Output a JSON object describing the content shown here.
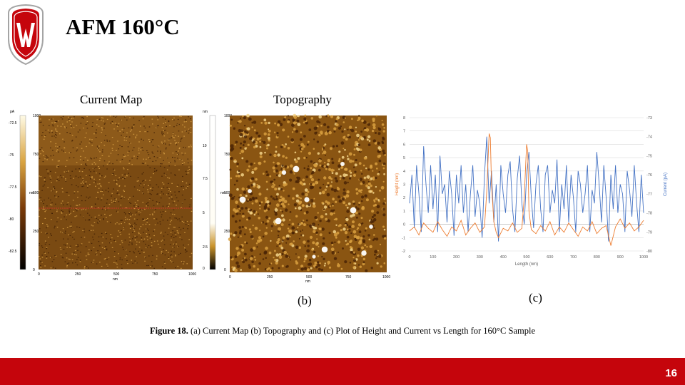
{
  "slide": {
    "title": "AFM 160°C",
    "page_number": "16",
    "footer_color": "#c5050c"
  },
  "panels": {
    "current_map_label": "Current Map",
    "topography_label": "Topography",
    "label_b": "(b)",
    "label_c": "(c)"
  },
  "current_map": {
    "unit": "pA",
    "colorbar_ticks": [
      "-72.5",
      "-75",
      "-77.5",
      "-80",
      "-82.5"
    ],
    "y_ticks": [
      "1000",
      "750",
      "500",
      "250",
      "0"
    ],
    "x_ticks": [
      "0",
      "250",
      "500",
      "750",
      "1000"
    ],
    "axis_unit": "nm"
  },
  "topography": {
    "unit": "nm",
    "colorbar_ticks": [
      "10",
      "7.5",
      "5",
      "2.5",
      "0"
    ],
    "y_ticks": [
      "1000",
      "750",
      "500",
      "250",
      "0"
    ],
    "x_ticks": [
      "0",
      "250",
      "500",
      "750",
      "1000"
    ],
    "axis_unit": "nm"
  },
  "caption": {
    "bold": "Figure 18.",
    "text": " (a) Current Map (b) Topography and (c) Plot of Height and Current vs Length for 160°C Sample"
  },
  "chart_data": {
    "type": "line",
    "xlabel": "Length (nm)",
    "ylabel": "Height (nm)",
    "y2label": "Current (pA)",
    "xlim": [
      0,
      1000
    ],
    "ylim": [
      -2,
      8
    ],
    "y2lim": [
      -80,
      -73
    ],
    "x_ticks": [
      "0",
      "100",
      "200",
      "300",
      "400",
      "500",
      "600",
      "700",
      "800",
      "900",
      "1000"
    ],
    "y_ticks": [
      "-2",
      "-1",
      "0",
      "1",
      "2",
      "3",
      "4",
      "5",
      "6",
      "7",
      "8"
    ],
    "y2_ticks": [
      "-80",
      "-79",
      "-78",
      "-77",
      "-76",
      "-75",
      "-74",
      "-73"
    ],
    "grid": true,
    "series": [
      {
        "color": "#ed7d31",
        "axis": "left",
        "x": [
          0,
          20,
          40,
          60,
          80,
          100,
          120,
          140,
          160,
          180,
          200,
          220,
          240,
          260,
          280,
          300,
          320,
          330,
          340,
          345,
          350,
          360,
          370,
          380,
          400,
          420,
          440,
          460,
          480,
          490,
          500,
          505,
          510,
          520,
          540,
          560,
          580,
          600,
          620,
          640,
          660,
          680,
          700,
          720,
          740,
          760,
          780,
          800,
          820,
          840,
          860,
          880,
          900,
          920,
          940,
          960,
          980,
          1000
        ],
        "values": [
          -0.5,
          -0.2,
          -0.8,
          0.1,
          -0.3,
          -0.6,
          0.2,
          -0.4,
          -0.9,
          -0.2,
          -0.5,
          0.3,
          -0.8,
          -0.3,
          0.1,
          -0.6,
          -0.2,
          2.5,
          6.8,
          6.5,
          3.0,
          0.2,
          -0.6,
          -1.0,
          -0.3,
          -0.5,
          0.1,
          -0.6,
          -0.3,
          2.0,
          6.0,
          5.5,
          1.0,
          -0.4,
          -0.7,
          -0.1,
          -0.5,
          0.2,
          -0.8,
          -0.2,
          -0.6,
          0.1,
          -0.4,
          -0.9,
          -0.2,
          -0.5,
          0.2,
          -0.7,
          -0.3,
          -0.1,
          -1.6,
          -0.2,
          0.4,
          -0.3,
          0.1,
          -0.5,
          -0.2,
          0.3
        ]
      },
      {
        "color": "#4472c4",
        "axis": "right",
        "x": [
          0,
          10,
          20,
          30,
          40,
          50,
          60,
          70,
          80,
          90,
          100,
          110,
          120,
          130,
          140,
          150,
          160,
          170,
          180,
          190,
          200,
          210,
          220,
          230,
          240,
          250,
          260,
          270,
          280,
          290,
          300,
          310,
          320,
          330,
          340,
          350,
          360,
          370,
          380,
          390,
          400,
          410,
          420,
          430,
          440,
          450,
          460,
          470,
          480,
          490,
          500,
          510,
          520,
          530,
          540,
          550,
          560,
          570,
          580,
          590,
          600,
          610,
          620,
          630,
          640,
          650,
          660,
          670,
          680,
          690,
          700,
          710,
          720,
          730,
          740,
          750,
          760,
          770,
          780,
          790,
          800,
          810,
          820,
          830,
          840,
          850,
          860,
          870,
          880,
          890,
          900,
          910,
          920,
          930,
          940,
          950,
          960,
          970,
          980,
          990,
          1000
        ],
        "values": [
          -77.5,
          -76,
          -78.8,
          -75.5,
          -77,
          -79,
          -74.5,
          -76.5,
          -78,
          -75.5,
          -77.8,
          -76,
          -79,
          -75,
          -77,
          -76.5,
          -78.5,
          -75.8,
          -77,
          -79.2,
          -76,
          -77.5,
          -75.5,
          -78,
          -76.5,
          -79,
          -77,
          -75.5,
          -78.2,
          -76.8,
          -77.5,
          -79.3,
          -76,
          -74,
          -77.5,
          -75.8,
          -78.5,
          -76.5,
          -79.5,
          -75.5,
          -77,
          -78,
          -76,
          -75.3,
          -77.8,
          -79,
          -76.2,
          -75,
          -77.5,
          -78.6,
          -76,
          -74.8,
          -77.2,
          -78.8,
          -76.5,
          -75.5,
          -77.8,
          -79,
          -76,
          -75.5,
          -78,
          -76.8,
          -77.5,
          -75.2,
          -79,
          -76.5,
          -77.8,
          -75.5,
          -78.5,
          -76,
          -77.2,
          -79,
          -75.8,
          -76.5,
          -78,
          -77,
          -75.5,
          -79,
          -76.8,
          -77.5,
          -74.8,
          -76.5,
          -78.5,
          -75.5,
          -77.2,
          -79.5,
          -76,
          -77.8,
          -75.5,
          -78,
          -76.5,
          -77,
          -79,
          -75.8,
          -76.8,
          -78.2,
          -75.5,
          -77.5,
          -79,
          -76,
          -78
        ]
      }
    ]
  }
}
